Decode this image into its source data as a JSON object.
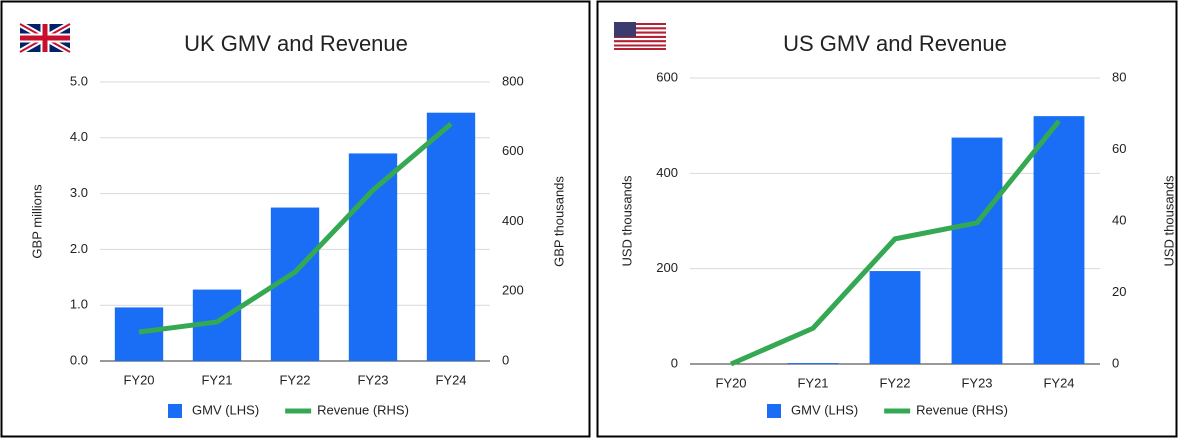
{
  "chart_data": [
    {
      "type": "bar_line",
      "title": "UK GMV and Revenue",
      "categories": [
        "FY20",
        "FY21",
        "FY22",
        "FY23",
        "FY24"
      ],
      "series": [
        {
          "name": "GMV (LHS)",
          "color": "#1a6ef5",
          "type": "bar",
          "values": [
            0.96,
            1.28,
            2.75,
            3.72,
            4.45
          ]
        },
        {
          "name": "Revenue (RHS)",
          "color": "#34a853",
          "type": "line",
          "axis": "y2",
          "values": [
            83,
            112,
            255,
            490,
            680
          ]
        }
      ],
      "ylabel": "GBP millions",
      "y2label": "GBP thousands",
      "ylim": [
        0,
        5
      ],
      "yticks": [
        {
          "value": 0,
          "label": "0.0"
        },
        {
          "value": 1,
          "label": "1.0"
        },
        {
          "value": 2,
          "label": "2.0"
        },
        {
          "value": 3,
          "label": "3.0"
        },
        {
          "value": 4,
          "label": "4.0"
        },
        {
          "value": 5,
          "label": "5.0"
        }
      ],
      "y2lim": [
        0,
        800
      ],
      "y2ticks": [
        0,
        200,
        400,
        600,
        800
      ],
      "grid": true
    },
    {
      "type": "bar_line",
      "title": "US GMV and Revenue",
      "categories": [
        "FY20",
        "FY21",
        "FY22",
        "FY23",
        "FY24"
      ],
      "series": [
        {
          "name": "GMV (LHS)",
          "color": "#1a6ef5",
          "type": "bar",
          "values": [
            0,
            2,
            195,
            475,
            520
          ]
        },
        {
          "name": "Revenue (RHS)",
          "color": "#34a853",
          "type": "line",
          "axis": "y2",
          "values": [
            0,
            10,
            35,
            39.5,
            68
          ]
        }
      ],
      "ylabel": "USD thousands",
      "y2label": "USD thousands",
      "ylim": [
        0,
        600
      ],
      "yticks": [
        0,
        200,
        400,
        600
      ],
      "y2lim": [
        0,
        80
      ],
      "y2ticks": [
        0,
        20,
        40,
        60,
        80
      ],
      "grid": true
    }
  ]
}
